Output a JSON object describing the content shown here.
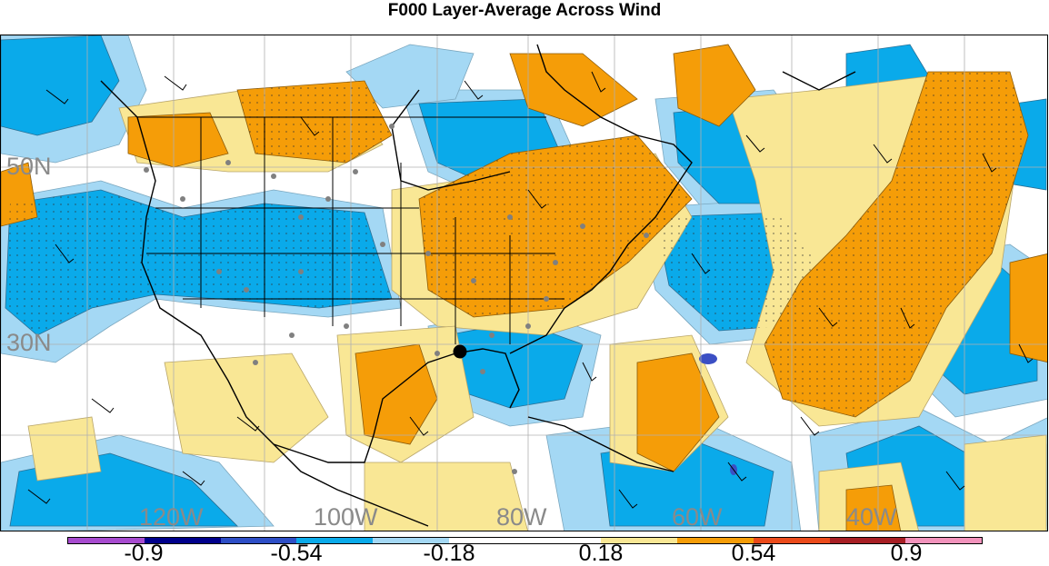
{
  "title": "F000 Layer-Average Across Wind",
  "map": {
    "lat_labels": [
      "50N",
      "30N"
    ],
    "lon_labels": [
      "120W",
      "100W",
      "80W",
      "60W",
      "40W"
    ]
  },
  "colorbar": {
    "colors": [
      "#a74bcf",
      "#00008b",
      "#2d4ec6",
      "#0aaaea",
      "#a4d8f4",
      "#ffffff",
      "#ffffff",
      "#f9e795",
      "#f59d08",
      "#eb4a1a",
      "#a71e24",
      "#f293bc"
    ],
    "labels": [
      "-0.9",
      "-0.54",
      "-0.18",
      "0.18",
      "0.54",
      "0.9"
    ]
  }
}
